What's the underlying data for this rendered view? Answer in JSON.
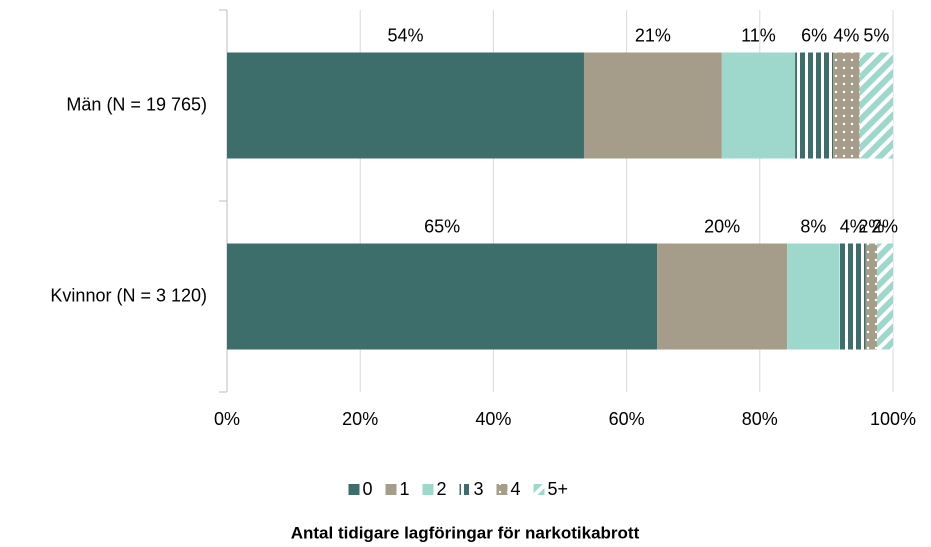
{
  "chart_data": {
    "type": "stacked_barh",
    "categories": [
      "Män (N = 19 765)",
      "Kvinnor (N = 3 120)"
    ],
    "series": [
      {
        "name": "0",
        "color": "#3d6e6b",
        "pattern": "solid",
        "values": [
          53.6,
          64.6
        ],
        "value_labels": [
          "54%",
          "65%"
        ]
      },
      {
        "name": "1",
        "color": "#a59d89",
        "pattern": "solid",
        "values": [
          20.7,
          19.5
        ],
        "value_labels": [
          "21%",
          "20%"
        ]
      },
      {
        "name": "2",
        "color": "#9ed8cc",
        "pattern": "solid",
        "values": [
          11.0,
          7.9
        ],
        "value_labels": [
          "11%",
          "8%"
        ]
      },
      {
        "name": "3",
        "color": "#3d6e6b",
        "pattern": "vstripe",
        "values": [
          5.7,
          3.9
        ],
        "value_labels": [
          "6%",
          "4%"
        ]
      },
      {
        "name": "4",
        "color": "#a59d89",
        "pattern": "dots",
        "values": [
          4.0,
          1.7
        ],
        "value_labels": [
          "4%",
          "2%"
        ]
      },
      {
        "name": "5+",
        "color": "#9ed8cc",
        "pattern": "diagonal",
        "values": [
          5.0,
          2.4
        ],
        "value_labels": [
          "5%",
          "2%"
        ]
      }
    ],
    "xlim": [
      0,
      100
    ],
    "xticks": [
      {
        "value": 0,
        "label": "0%"
      },
      {
        "value": 20,
        "label": "20%"
      },
      {
        "value": 40,
        "label": "40%"
      },
      {
        "value": 60,
        "label": "60%"
      },
      {
        "value": 80,
        "label": "80%"
      },
      {
        "value": 100,
        "label": "100%"
      }
    ],
    "grid": true,
    "legend_position": "bottom",
    "legend_title": "Antal tidigare lagföringar för narkotikabrott"
  }
}
